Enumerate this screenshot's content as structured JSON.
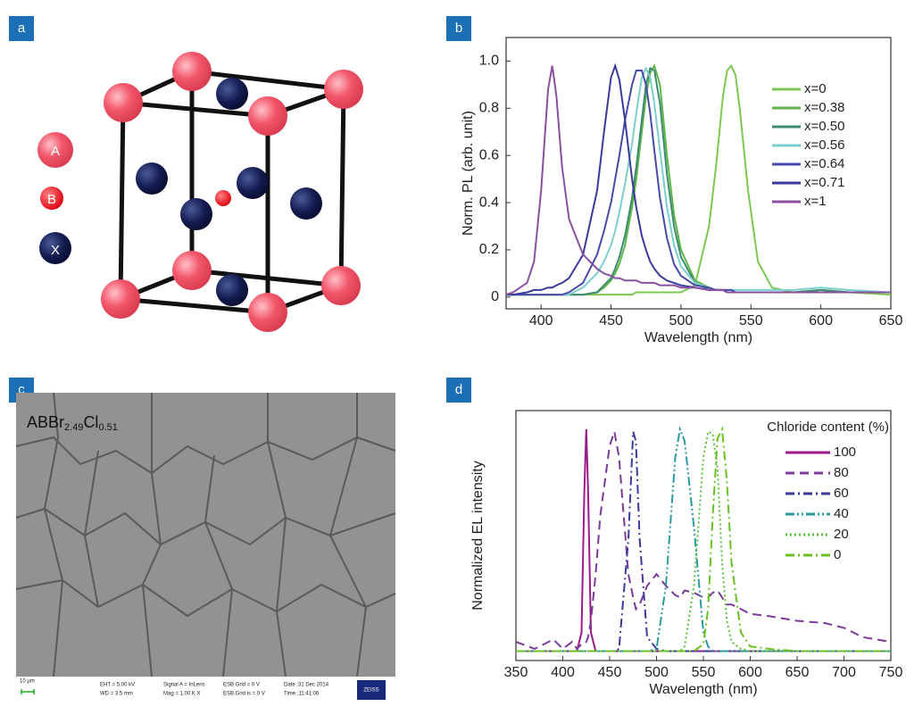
{
  "panel_labels": [
    "a",
    "b",
    "c",
    "d"
  ],
  "crystal": {
    "legend": [
      "A",
      "B",
      "X"
    ]
  },
  "sem": {
    "label_parts": [
      "ABBr",
      "2.49",
      "Cl",
      "0.51"
    ],
    "scale_bar": "10 µm",
    "footer": [
      "EHT = 5.00 kV",
      "WD = 3.5 mm",
      "Signal A = InLens",
      "Mag = 1.00 K X",
      "ESB Grid = 0 V",
      "ESB Grid is = 0 V",
      "Date :31 Dec 2014",
      "Time :11:41:06"
    ],
    "logo": "ZEISS"
  },
  "chart_data": [
    {
      "type": "line",
      "xlabel": "Wavelength (nm)",
      "ylabel": "Norm. PL (arb. unit)",
      "xlim": [
        375,
        650
      ],
      "ylim": [
        -0.05,
        1.1
      ],
      "xticks": [
        400,
        450,
        500,
        550,
        600,
        650
      ],
      "yticks": [
        0,
        0.2,
        0.4,
        0.6,
        0.8,
        {
          "value": 1,
          "label": "1.0"
        }
      ],
      "x": [
        375,
        380,
        390,
        395,
        400,
        405,
        408,
        411,
        415,
        420,
        430,
        440,
        445,
        450,
        453,
        456,
        460,
        465,
        468,
        472,
        475,
        478,
        481,
        485,
        490,
        495,
        500,
        510,
        520,
        525,
        530,
        533,
        536,
        539,
        542,
        548,
        555,
        565,
        580,
        600,
        620,
        650
      ],
      "series": [
        {
          "name": "x=0",
          "color": "#7dc852",
          "dash": "solid",
          "values": [
            0.01,
            0.01,
            0.01,
            0.01,
            0.01,
            0.01,
            0.01,
            0.01,
            0.01,
            0.01,
            0.01,
            0.01,
            0.01,
            0.01,
            0.01,
            0.01,
            0.01,
            0.01,
            0.02,
            0.02,
            0.02,
            0.02,
            0.02,
            0.02,
            0.02,
            0.02,
            0.02,
            0.05,
            0.3,
            0.55,
            0.85,
            0.96,
            0.98,
            0.94,
            0.8,
            0.45,
            0.15,
            0.04,
            0.02,
            0.03,
            0.02,
            0.01
          ]
        },
        {
          "name": "x=0.38",
          "color": "#5fb646",
          "dash": "solid",
          "values": [
            0.01,
            0.01,
            0.01,
            0.01,
            0.01,
            0.01,
            0.01,
            0.01,
            0.01,
            0.01,
            0.01,
            0.02,
            0.04,
            0.07,
            0.1,
            0.14,
            0.22,
            0.38,
            0.5,
            0.7,
            0.85,
            0.95,
            0.98,
            0.9,
            0.6,
            0.35,
            0.2,
            0.07,
            0.04,
            0.03,
            0.03,
            0.02,
            0.02,
            0.02,
            0.02,
            0.02,
            0.02,
            0.02,
            0.02,
            0.03,
            0.02,
            0.02
          ]
        },
        {
          "name": "x=0.50",
          "color": "#3c8a70",
          "dash": "solid",
          "values": [
            0.01,
            0.01,
            0.01,
            0.01,
            0.01,
            0.01,
            0.01,
            0.01,
            0.01,
            0.01,
            0.01,
            0.02,
            0.05,
            0.08,
            0.12,
            0.17,
            0.26,
            0.42,
            0.55,
            0.75,
            0.9,
            0.97,
            0.96,
            0.82,
            0.52,
            0.3,
            0.17,
            0.06,
            0.03,
            0.03,
            0.03,
            0.02,
            0.02,
            0.02,
            0.02,
            0.02,
            0.02,
            0.02,
            0.02,
            0.03,
            0.02,
            0.02
          ]
        },
        {
          "name": "x=0.56",
          "color": "#7ccfcf",
          "dash": "solid",
          "values": [
            0.01,
            0.01,
            0.01,
            0.01,
            0.01,
            0.01,
            0.01,
            0.01,
            0.01,
            0.01,
            0.04,
            0.1,
            0.15,
            0.22,
            0.28,
            0.36,
            0.48,
            0.65,
            0.78,
            0.93,
            0.97,
            0.93,
            0.82,
            0.62,
            0.38,
            0.22,
            0.13,
            0.06,
            0.04,
            0.03,
            0.03,
            0.03,
            0.03,
            0.03,
            0.03,
            0.03,
            0.03,
            0.03,
            0.03,
            0.04,
            0.03,
            0.02
          ]
        },
        {
          "name": "x=0.64",
          "color": "#4a4aa8",
          "dash": "solid",
          "values": [
            0.01,
            0.01,
            0.01,
            0.01,
            0.01,
            0.01,
            0.01,
            0.01,
            0.01,
            0.02,
            0.06,
            0.18,
            0.28,
            0.4,
            0.5,
            0.6,
            0.75,
            0.9,
            0.96,
            0.96,
            0.9,
            0.78,
            0.62,
            0.42,
            0.25,
            0.14,
            0.09,
            0.05,
            0.04,
            0.03,
            0.03,
            0.03,
            0.03,
            0.02,
            0.02,
            0.02,
            0.02,
            0.02,
            0.02,
            0.02,
            0.02,
            0.02
          ]
        },
        {
          "name": "x=0.71",
          "color": "#3a3a9a",
          "dash": "solid",
          "values": [
            0.01,
            0.01,
            0.02,
            0.03,
            0.03,
            0.04,
            0.04,
            0.05,
            0.06,
            0.08,
            0.18,
            0.45,
            0.7,
            0.93,
            0.98,
            0.92,
            0.75,
            0.5,
            0.38,
            0.26,
            0.2,
            0.15,
            0.12,
            0.09,
            0.07,
            0.06,
            0.05,
            0.04,
            0.03,
            0.03,
            0.03,
            0.02,
            0.02,
            0.02,
            0.02,
            0.02,
            0.02,
            0.02,
            0.02,
            0.02,
            0.02,
            0.02
          ]
        },
        {
          "name": "x=1",
          "color": "#8a4fa0",
          "dash": "solid",
          "values": [
            0.01,
            0.02,
            0.06,
            0.15,
            0.45,
            0.88,
            0.98,
            0.85,
            0.55,
            0.33,
            0.18,
            0.12,
            0.1,
            0.09,
            0.08,
            0.08,
            0.07,
            0.07,
            0.07,
            0.06,
            0.06,
            0.06,
            0.06,
            0.05,
            0.05,
            0.05,
            0.04,
            0.04,
            0.03,
            0.03,
            0.03,
            0.02,
            0.02,
            0.02,
            0.02,
            0.02,
            0.02,
            0.02,
            0.02,
            0.02,
            0.02,
            0.02
          ]
        }
      ],
      "legend": "upper right"
    },
    {
      "type": "line",
      "xlabel": "Wavelength (nm)",
      "ylabel": "Normalized EL intensity",
      "legend_title": "Chloride content (%)",
      "xlim": [
        350,
        750
      ],
      "ylim": [
        -0.02,
        1.05
      ],
      "xticks": [
        350,
        400,
        450,
        500,
        550,
        600,
        650,
        700,
        750
      ],
      "x": [
        350,
        370,
        390,
        400,
        410,
        415,
        420,
        423,
        425,
        427,
        430,
        435,
        440,
        450,
        455,
        460,
        470,
        475,
        478,
        482,
        490,
        500,
        510,
        520,
        525,
        530,
        540,
        550,
        555,
        560,
        565,
        570,
        575,
        580,
        590,
        600,
        620,
        650,
        680,
        700,
        720,
        750
      ],
      "series": [
        {
          "name": "100",
          "color": "#9a1a8a",
          "dash": "solid",
          "values": [
            0.02,
            0.02,
            0.02,
            0.02,
            0.02,
            0.02,
            0.1,
            0.7,
            0.97,
            0.7,
            0.1,
            0.02,
            0.02,
            0.02,
            0.02,
            0.02,
            0.02,
            0.02,
            0.02,
            0.02,
            0.02,
            0.02,
            0.02,
            0.02,
            0.02,
            0.02,
            0.02,
            0.02,
            0.02,
            0.02,
            0.02,
            0.02,
            0.02,
            0.02,
            0.02,
            0.02,
            0.02,
            0.02,
            0.02,
            0.02,
            0.02,
            0.02
          ]
        },
        {
          "name": "80",
          "color": "#7a3a9a",
          "dash": "dashed",
          "values": [
            0.06,
            0.03,
            0.07,
            0.03,
            0.06,
            0.03,
            0.05,
            0.05,
            0.06,
            0.08,
            0.15,
            0.35,
            0.6,
            0.9,
            0.96,
            0.85,
            0.35,
            0.25,
            0.2,
            0.22,
            0.3,
            0.35,
            0.3,
            0.26,
            0.25,
            0.28,
            0.27,
            0.25,
            0.25,
            0.27,
            0.28,
            0.25,
            0.22,
            0.22,
            0.2,
            0.18,
            0.17,
            0.15,
            0.14,
            0.12,
            0.08,
            0.06
          ]
        },
        {
          "name": "60",
          "color": "#3a3a9a",
          "dash": "dashdot",
          "values": [
            0.02,
            0.02,
            0.02,
            0.02,
            0.02,
            0.02,
            0.02,
            0.02,
            0.02,
            0.02,
            0.02,
            0.02,
            0.02,
            0.02,
            0.02,
            0.03,
            0.5,
            0.96,
            0.92,
            0.5,
            0.08,
            0.03,
            0.02,
            0.02,
            0.02,
            0.02,
            0.02,
            0.02,
            0.02,
            0.02,
            0.02,
            0.02,
            0.02,
            0.02,
            0.02,
            0.02,
            0.02,
            0.02,
            0.02,
            0.02,
            0.02,
            0.02
          ]
        },
        {
          "name": "40",
          "color": "#2a9aa0",
          "dash": "dashdotdot",
          "values": [
            0.02,
            0.02,
            0.02,
            0.02,
            0.02,
            0.02,
            0.02,
            0.02,
            0.02,
            0.02,
            0.02,
            0.02,
            0.02,
            0.02,
            0.02,
            0.02,
            0.02,
            0.02,
            0.02,
            0.02,
            0.02,
            0.03,
            0.3,
            0.85,
            0.97,
            0.92,
            0.55,
            0.1,
            0.04,
            0.02,
            0.02,
            0.02,
            0.02,
            0.02,
            0.02,
            0.02,
            0.02,
            0.02,
            0.02,
            0.02,
            0.02,
            0.02
          ]
        },
        {
          "name": "20",
          "color": "#5abf3a",
          "dash": "dotted",
          "values": [
            0.02,
            0.02,
            0.02,
            0.02,
            0.02,
            0.02,
            0.02,
            0.02,
            0.02,
            0.02,
            0.02,
            0.02,
            0.02,
            0.02,
            0.02,
            0.02,
            0.02,
            0.02,
            0.02,
            0.02,
            0.02,
            0.02,
            0.02,
            0.02,
            0.02,
            0.04,
            0.3,
            0.85,
            0.96,
            0.95,
            0.8,
            0.4,
            0.15,
            0.06,
            0.03,
            0.02,
            0.02,
            0.02,
            0.02,
            0.02,
            0.02,
            0.02
          ]
        },
        {
          "name": "0",
          "color": "#6ac020",
          "dash": "dashdot",
          "values": [
            0.02,
            0.02,
            0.02,
            0.02,
            0.02,
            0.02,
            0.02,
            0.02,
            0.02,
            0.02,
            0.02,
            0.02,
            0.02,
            0.02,
            0.02,
            0.02,
            0.02,
            0.02,
            0.02,
            0.02,
            0.02,
            0.02,
            0.02,
            0.02,
            0.02,
            0.02,
            0.02,
            0.05,
            0.2,
            0.6,
            0.93,
            0.97,
            0.75,
            0.4,
            0.1,
            0.04,
            0.03,
            0.02,
            0.02,
            0.02,
            0.02,
            0.02
          ]
        }
      ],
      "legend": "upper right"
    }
  ]
}
